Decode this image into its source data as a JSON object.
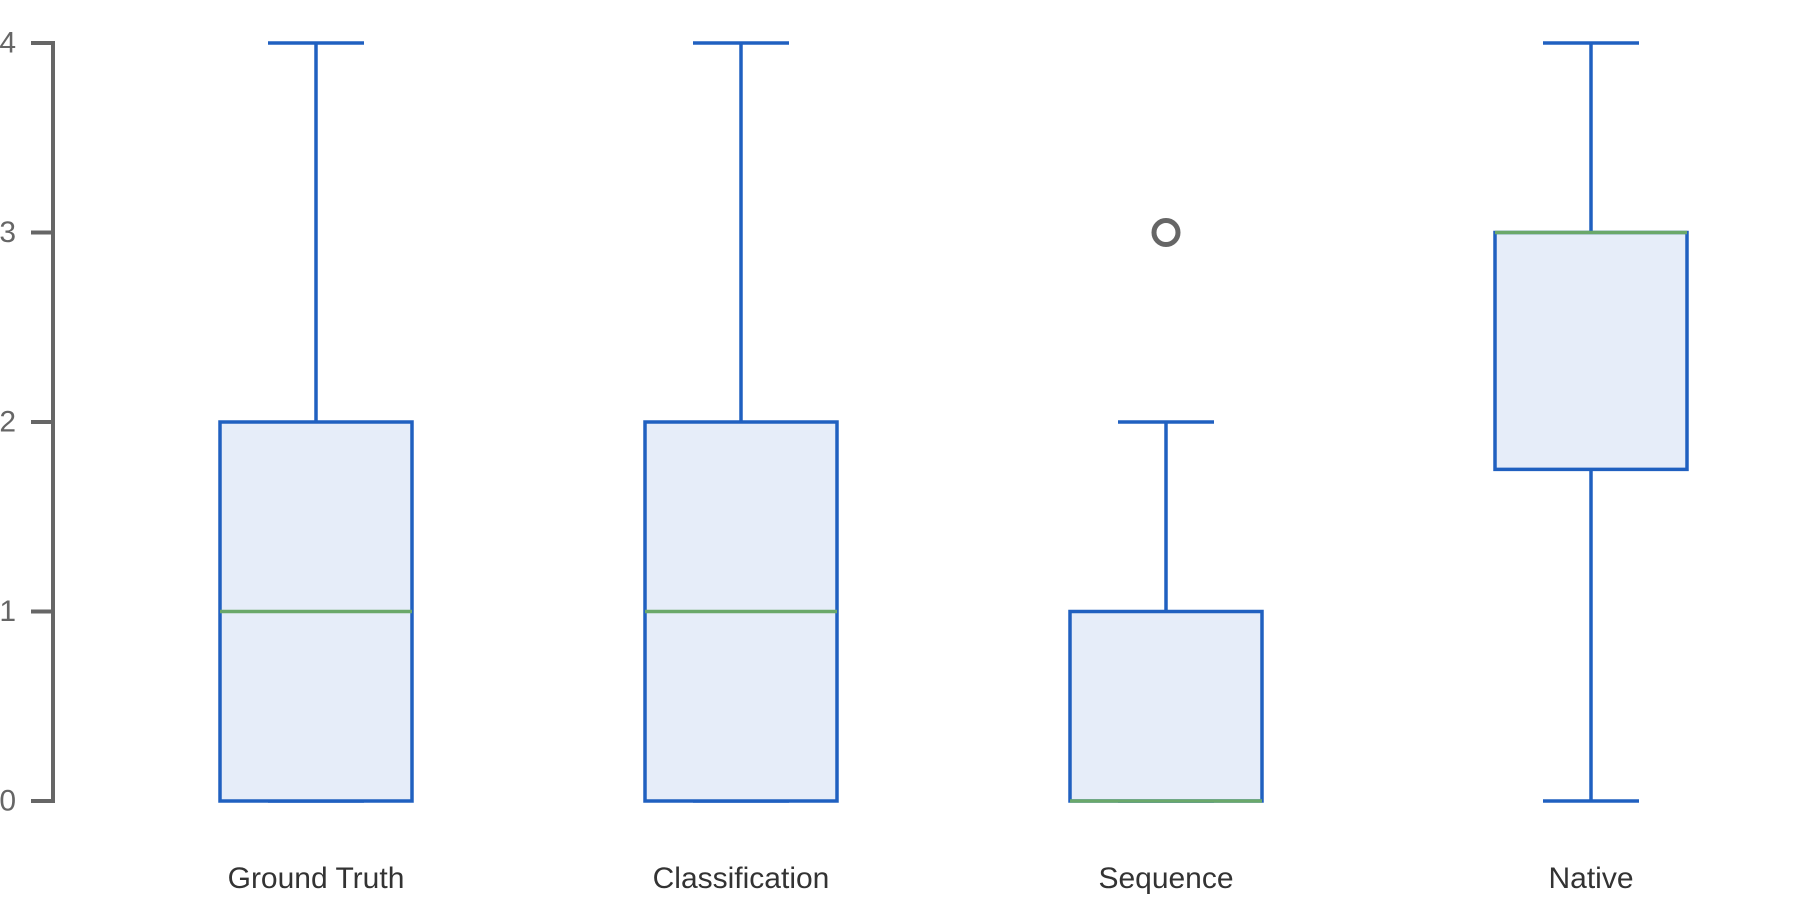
{
  "chart_data": {
    "type": "box",
    "ylim": [
      0,
      4
    ],
    "yticks": [
      0,
      1,
      2,
      3,
      4
    ],
    "title": "",
    "xlabel": "",
    "ylabel": "",
    "grid": false,
    "categories": [
      "Ground Truth",
      "Classification",
      "Sequence",
      "Native"
    ],
    "boxes": [
      {
        "category": "Ground Truth",
        "whisker_low": 0,
        "q1": 0,
        "median": 1,
        "q3": 2,
        "whisker_high": 4,
        "outliers": []
      },
      {
        "category": "Classification",
        "whisker_low": 0,
        "q1": 0,
        "median": 1,
        "q3": 2,
        "whisker_high": 4,
        "outliers": []
      },
      {
        "category": "Sequence",
        "whisker_low": 0,
        "q1": 0,
        "median": 0,
        "q3": 1,
        "whisker_high": 2,
        "outliers": [
          3
        ]
      },
      {
        "category": "Native",
        "whisker_low": 0,
        "q1": 1.75,
        "median": 3,
        "q3": 3,
        "whisker_high": 4,
        "outliers": []
      }
    ],
    "colors": {
      "box_edge": "#2060c0",
      "box_fill": "#e6edf9",
      "median": "#6aa86a",
      "axis": "#666666",
      "outlier": "#666666"
    }
  }
}
